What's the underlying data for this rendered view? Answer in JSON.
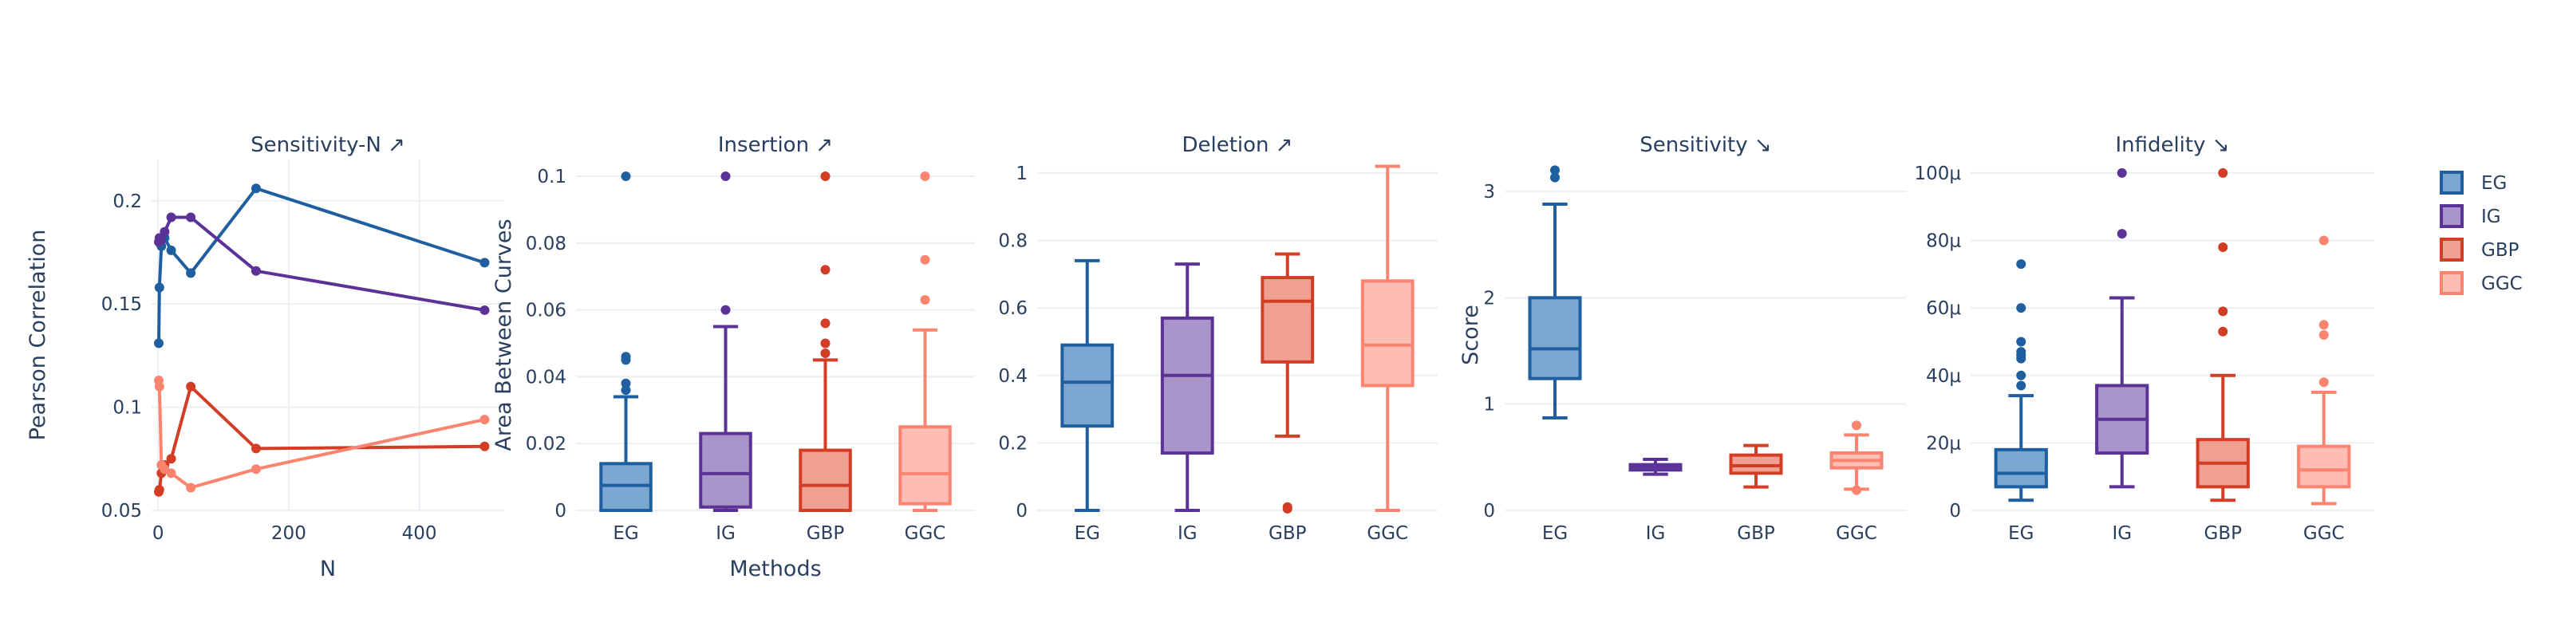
{
  "legend": [
    {
      "name": "EG",
      "color": "#1f5fa0",
      "fill": "#7ba7d0"
    },
    {
      "name": "IG",
      "color": "#5b3296",
      "fill": "#a995c9"
    },
    {
      "name": "GBP",
      "color": "#d43d25",
      "fill": "#f0a092"
    },
    {
      "name": "GGC",
      "color": "#fa8470",
      "fill": "#fdbdb4"
    }
  ],
  "chart_data": [
    {
      "type": "line",
      "title": "Sensitivity-N ↗",
      "xlabel": "N",
      "ylabel": "Pearson Correlation",
      "xlim": [
        -10,
        530
      ],
      "ylim": [
        0.05,
        0.22
      ],
      "xticks": [
        0,
        200,
        400
      ],
      "yticks": [
        0.05,
        0.1,
        0.15,
        0.2
      ],
      "ytick_labels": [
        "0.05",
        "0.1",
        "0.15",
        "0.2"
      ],
      "series": [
        {
          "name": "EG",
          "color": "#1f5fa0",
          "x": [
            1,
            2,
            5,
            10,
            20,
            50,
            150,
            500
          ],
          "y": [
            0.131,
            0.158,
            0.178,
            0.182,
            0.176,
            0.165,
            0.206,
            0.17
          ]
        },
        {
          "name": "IG",
          "color": "#5b3296",
          "x": [
            1,
            2,
            5,
            10,
            20,
            50,
            150,
            500
          ],
          "y": [
            0.18,
            0.182,
            0.181,
            0.185,
            0.192,
            0.192,
            0.166,
            0.147
          ]
        },
        {
          "name": "GBP",
          "color": "#d43d25",
          "x": [
            1,
            2,
            5,
            10,
            20,
            50,
            150,
            500
          ],
          "y": [
            0.059,
            0.06,
            0.068,
            0.072,
            0.075,
            0.11,
            0.08,
            0.081
          ]
        },
        {
          "name": "GGC",
          "color": "#fa8470",
          "x": [
            1,
            2,
            5,
            10,
            20,
            50,
            150,
            500
          ],
          "y": [
            0.113,
            0.11,
            0.072,
            0.07,
            0.068,
            0.061,
            0.07,
            0.094
          ]
        }
      ]
    },
    {
      "type": "box",
      "title": "Insertion ↗",
      "xlabel": "Methods",
      "ylabel": "Area Between Curves",
      "ylim": [
        0,
        0.105
      ],
      "yticks": [
        0,
        0.02,
        0.04,
        0.06,
        0.08,
        0.1
      ],
      "ytick_labels": [
        "0",
        "0.02",
        "0.04",
        "0.06",
        "0.08",
        "0.1"
      ],
      "categories": [
        "EG",
        "IG",
        "GBP",
        "GGC"
      ],
      "boxes": [
        {
          "name": "EG",
          "min": 0,
          "q1": 0,
          "median": 0.0075,
          "q3": 0.014,
          "max": 0.034,
          "outliers": [
            0.036,
            0.038,
            0.045,
            0.046,
            0.1
          ]
        },
        {
          "name": "IG",
          "min": 0,
          "q1": 0.001,
          "median": 0.011,
          "q3": 0.023,
          "max": 0.055,
          "outliers": [
            0.06,
            0.1
          ]
        },
        {
          "name": "GBP",
          "min": 0,
          "q1": 0,
          "median": 0.0075,
          "q3": 0.018,
          "max": 0.045,
          "outliers": [
            0.047,
            0.05,
            0.056,
            0.072,
            0.1
          ]
        },
        {
          "name": "GGC",
          "min": 0,
          "q1": 0.002,
          "median": 0.011,
          "q3": 0.025,
          "max": 0.054,
          "outliers": [
            0.063,
            0.075,
            0.1
          ]
        }
      ]
    },
    {
      "type": "box",
      "title": "Deletion ↗",
      "xlabel": "",
      "ylabel": "",
      "ylim": [
        0,
        1.04
      ],
      "yticks": [
        0,
        0.2,
        0.4,
        0.6,
        0.8,
        1
      ],
      "ytick_labels": [
        "0",
        "0.2",
        "0.4",
        "0.6",
        "0.8",
        "1"
      ],
      "categories": [
        "EG",
        "IG",
        "GBP",
        "GGC"
      ],
      "boxes": [
        {
          "name": "EG",
          "min": 0,
          "q1": 0.25,
          "median": 0.38,
          "q3": 0.49,
          "max": 0.74,
          "outliers": []
        },
        {
          "name": "IG",
          "min": 0,
          "q1": 0.17,
          "median": 0.4,
          "q3": 0.57,
          "max": 0.73,
          "outliers": []
        },
        {
          "name": "GBP",
          "min": 0.22,
          "q1": 0.44,
          "median": 0.62,
          "q3": 0.69,
          "max": 0.76,
          "outliers": [
            0.005,
            0.01
          ]
        },
        {
          "name": "GGC",
          "min": 0,
          "q1": 0.37,
          "median": 0.49,
          "q3": 0.68,
          "max": 1.02,
          "outliers": []
        }
      ]
    },
    {
      "type": "box",
      "title": "Sensitivity ↘",
      "xlabel": "",
      "ylabel": "Score",
      "ylim": [
        0,
        3.3
      ],
      "yticks": [
        0,
        1,
        2,
        3
      ],
      "ytick_labels": [
        "0",
        "1",
        "2",
        "3"
      ],
      "categories": [
        "EG",
        "IG",
        "GBP",
        "GGC"
      ],
      "boxes": [
        {
          "name": "EG",
          "min": 0.87,
          "q1": 1.24,
          "median": 1.52,
          "q3": 2.0,
          "max": 2.88,
          "outliers": [
            3.13,
            3.2
          ]
        },
        {
          "name": "IG",
          "min": 0.34,
          "q1": 0.38,
          "median": 0.41,
          "q3": 0.43,
          "max": 0.48,
          "outliers": []
        },
        {
          "name": "GBP",
          "min": 0.22,
          "q1": 0.35,
          "median": 0.42,
          "q3": 0.52,
          "max": 0.61,
          "outliers": []
        },
        {
          "name": "GGC",
          "min": 0.2,
          "q1": 0.4,
          "median": 0.47,
          "q3": 0.54,
          "max": 0.71,
          "outliers": [
            0.19,
            0.8
          ]
        }
      ]
    },
    {
      "type": "box",
      "title": "Infidelity ↘",
      "xlabel": "",
      "ylabel": "",
      "ylim": [
        0,
        0.000104
      ],
      "yticks": [
        0,
        2e-05,
        4e-05,
        6e-05,
        8e-05,
        0.0001
      ],
      "ytick_labels": [
        "0",
        "20μ",
        "40μ",
        "60μ",
        "80μ",
        "100μ"
      ],
      "categories": [
        "EG",
        "IG",
        "GBP",
        "GGC"
      ],
      "boxes": [
        {
          "name": "EG",
          "min": 3e-06,
          "q1": 7e-06,
          "median": 1.1e-05,
          "q3": 1.8e-05,
          "max": 3.4e-05,
          "outliers": [
            3.7e-05,
            4e-05,
            4.5e-05,
            4.6e-05,
            4.7e-05,
            5e-05,
            6e-05,
            7.3e-05
          ]
        },
        {
          "name": "IG",
          "min": 7e-06,
          "q1": 1.7e-05,
          "median": 2.7e-05,
          "q3": 3.7e-05,
          "max": 6.3e-05,
          "outliers": [
            8.2e-05,
            0.0001
          ]
        },
        {
          "name": "GBP",
          "min": 3e-06,
          "q1": 7e-06,
          "median": 1.4e-05,
          "q3": 2.1e-05,
          "max": 4e-05,
          "outliers": [
            5.3e-05,
            5.9e-05,
            7.8e-05,
            0.0001
          ]
        },
        {
          "name": "GGC",
          "min": 2e-06,
          "q1": 7e-06,
          "median": 1.2e-05,
          "q3": 1.9e-05,
          "max": 3.5e-05,
          "outliers": [
            3.8e-05,
            5.2e-05,
            5.5e-05,
            8e-05
          ]
        }
      ]
    }
  ]
}
